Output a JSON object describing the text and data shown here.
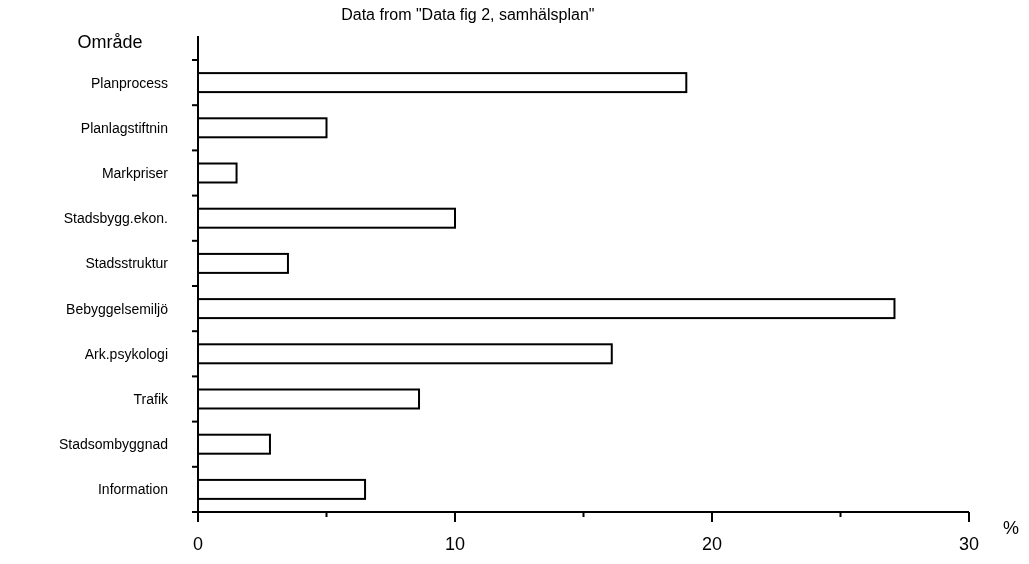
{
  "chart_data": {
    "type": "bar",
    "orientation": "horizontal",
    "title": "Data from \"Data fig 2, samhälsplan\"",
    "ylabel": "Område",
    "xlabel": "%",
    "categories": [
      "Planprocess",
      "Planlagstiftnin",
      "Markpriser",
      "Stadsbygg.ekon.",
      "Stadsstruktur",
      "Bebyggelsemiljö",
      "Ark.psykologi",
      "Trafik",
      "Stadsombyggnad",
      "Information"
    ],
    "values": [
      19,
      5,
      1.5,
      10,
      3.5,
      27.1,
      16.1,
      8.6,
      2.8,
      6.5
    ],
    "color": "#ffffff",
    "xlim": [
      0,
      30
    ],
    "xticks": [
      0,
      {
        "value": 5,
        "label": null
      },
      10,
      {
        "value": 15,
        "label": null
      },
      20,
      {
        "value": 25,
        "label": null
      },
      30
    ],
    "grid": false
  }
}
